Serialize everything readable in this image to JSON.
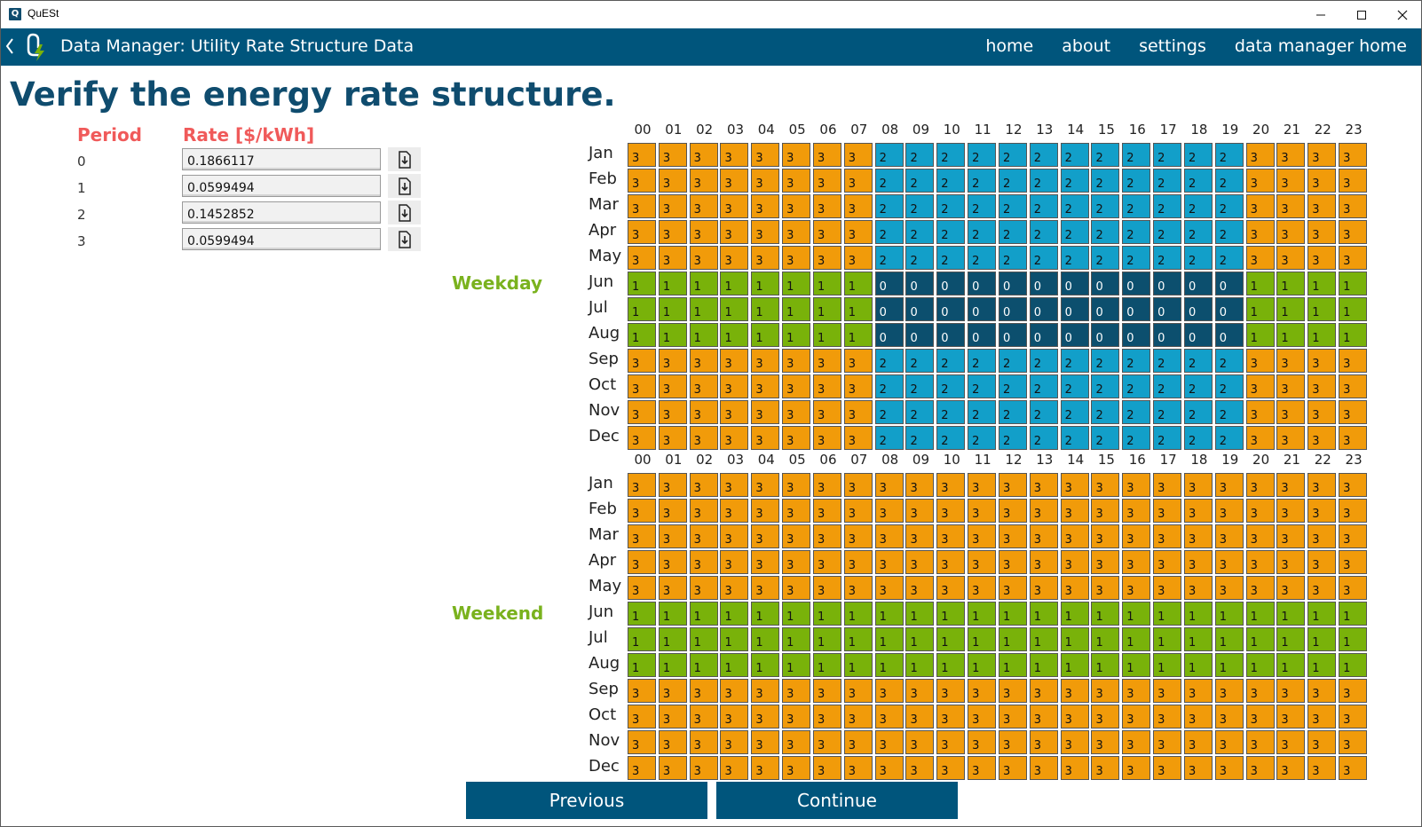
{
  "window": {
    "title": "QuESt",
    "icon_letter": "Q"
  },
  "header": {
    "title": "Data Manager: Utility Rate Structure Data",
    "nav": [
      "home",
      "about",
      "settings",
      "data manager home"
    ]
  },
  "page": {
    "title": "Verify the energy rate structure."
  },
  "rates": {
    "period_header": "Period",
    "rate_header": "Rate [$/kWh]",
    "rows": [
      {
        "period": "0",
        "value": "0.1866117"
      },
      {
        "period": "1",
        "value": "0.0599494"
      },
      {
        "period": "2",
        "value": "0.1452852"
      },
      {
        "period": "3",
        "value": "0.0599494"
      }
    ]
  },
  "hours": [
    "00",
    "01",
    "02",
    "03",
    "04",
    "05",
    "06",
    "07",
    "08",
    "09",
    "10",
    "11",
    "12",
    "13",
    "14",
    "15",
    "16",
    "17",
    "18",
    "19",
    "20",
    "21",
    "22",
    "23"
  ],
  "months": [
    "Jan",
    "Feb",
    "Mar",
    "Apr",
    "May",
    "Jun",
    "Jul",
    "Aug",
    "Sep",
    "Oct",
    "Nov",
    "Dec"
  ],
  "weekday": {
    "label": "Weekday",
    "schedule": [
      [
        3,
        3,
        3,
        3,
        3,
        3,
        3,
        3,
        2,
        2,
        2,
        2,
        2,
        2,
        2,
        2,
        2,
        2,
        2,
        2,
        3,
        3,
        3,
        3
      ],
      [
        3,
        3,
        3,
        3,
        3,
        3,
        3,
        3,
        2,
        2,
        2,
        2,
        2,
        2,
        2,
        2,
        2,
        2,
        2,
        2,
        3,
        3,
        3,
        3
      ],
      [
        3,
        3,
        3,
        3,
        3,
        3,
        3,
        3,
        2,
        2,
        2,
        2,
        2,
        2,
        2,
        2,
        2,
        2,
        2,
        2,
        3,
        3,
        3,
        3
      ],
      [
        3,
        3,
        3,
        3,
        3,
        3,
        3,
        3,
        2,
        2,
        2,
        2,
        2,
        2,
        2,
        2,
        2,
        2,
        2,
        2,
        3,
        3,
        3,
        3
      ],
      [
        3,
        3,
        3,
        3,
        3,
        3,
        3,
        3,
        2,
        2,
        2,
        2,
        2,
        2,
        2,
        2,
        2,
        2,
        2,
        2,
        3,
        3,
        3,
        3
      ],
      [
        1,
        1,
        1,
        1,
        1,
        1,
        1,
        1,
        0,
        0,
        0,
        0,
        0,
        0,
        0,
        0,
        0,
        0,
        0,
        0,
        1,
        1,
        1,
        1
      ],
      [
        1,
        1,
        1,
        1,
        1,
        1,
        1,
        1,
        0,
        0,
        0,
        0,
        0,
        0,
        0,
        0,
        0,
        0,
        0,
        0,
        1,
        1,
        1,
        1
      ],
      [
        1,
        1,
        1,
        1,
        1,
        1,
        1,
        1,
        0,
        0,
        0,
        0,
        0,
        0,
        0,
        0,
        0,
        0,
        0,
        0,
        1,
        1,
        1,
        1
      ],
      [
        3,
        3,
        3,
        3,
        3,
        3,
        3,
        3,
        2,
        2,
        2,
        2,
        2,
        2,
        2,
        2,
        2,
        2,
        2,
        2,
        3,
        3,
        3,
        3
      ],
      [
        3,
        3,
        3,
        3,
        3,
        3,
        3,
        3,
        2,
        2,
        2,
        2,
        2,
        2,
        2,
        2,
        2,
        2,
        2,
        2,
        3,
        3,
        3,
        3
      ],
      [
        3,
        3,
        3,
        3,
        3,
        3,
        3,
        3,
        2,
        2,
        2,
        2,
        2,
        2,
        2,
        2,
        2,
        2,
        2,
        2,
        3,
        3,
        3,
        3
      ],
      [
        3,
        3,
        3,
        3,
        3,
        3,
        3,
        3,
        2,
        2,
        2,
        2,
        2,
        2,
        2,
        2,
        2,
        2,
        2,
        2,
        3,
        3,
        3,
        3
      ]
    ]
  },
  "weekend": {
    "label": "Weekend",
    "schedule": [
      [
        3,
        3,
        3,
        3,
        3,
        3,
        3,
        3,
        3,
        3,
        3,
        3,
        3,
        3,
        3,
        3,
        3,
        3,
        3,
        3,
        3,
        3,
        3,
        3
      ],
      [
        3,
        3,
        3,
        3,
        3,
        3,
        3,
        3,
        3,
        3,
        3,
        3,
        3,
        3,
        3,
        3,
        3,
        3,
        3,
        3,
        3,
        3,
        3,
        3
      ],
      [
        3,
        3,
        3,
        3,
        3,
        3,
        3,
        3,
        3,
        3,
        3,
        3,
        3,
        3,
        3,
        3,
        3,
        3,
        3,
        3,
        3,
        3,
        3,
        3
      ],
      [
        3,
        3,
        3,
        3,
        3,
        3,
        3,
        3,
        3,
        3,
        3,
        3,
        3,
        3,
        3,
        3,
        3,
        3,
        3,
        3,
        3,
        3,
        3,
        3
      ],
      [
        3,
        3,
        3,
        3,
        3,
        3,
        3,
        3,
        3,
        3,
        3,
        3,
        3,
        3,
        3,
        3,
        3,
        3,
        3,
        3,
        3,
        3,
        3,
        3
      ],
      [
        1,
        1,
        1,
        1,
        1,
        1,
        1,
        1,
        1,
        1,
        1,
        1,
        1,
        1,
        1,
        1,
        1,
        1,
        1,
        1,
        1,
        1,
        1,
        1
      ],
      [
        1,
        1,
        1,
        1,
        1,
        1,
        1,
        1,
        1,
        1,
        1,
        1,
        1,
        1,
        1,
        1,
        1,
        1,
        1,
        1,
        1,
        1,
        1,
        1
      ],
      [
        1,
        1,
        1,
        1,
        1,
        1,
        1,
        1,
        1,
        1,
        1,
        1,
        1,
        1,
        1,
        1,
        1,
        1,
        1,
        1,
        1,
        1,
        1,
        1
      ],
      [
        3,
        3,
        3,
        3,
        3,
        3,
        3,
        3,
        3,
        3,
        3,
        3,
        3,
        3,
        3,
        3,
        3,
        3,
        3,
        3,
        3,
        3,
        3,
        3
      ],
      [
        3,
        3,
        3,
        3,
        3,
        3,
        3,
        3,
        3,
        3,
        3,
        3,
        3,
        3,
        3,
        3,
        3,
        3,
        3,
        3,
        3,
        3,
        3,
        3
      ],
      [
        3,
        3,
        3,
        3,
        3,
        3,
        3,
        3,
        3,
        3,
        3,
        3,
        3,
        3,
        3,
        3,
        3,
        3,
        3,
        3,
        3,
        3,
        3,
        3
      ],
      [
        3,
        3,
        3,
        3,
        3,
        3,
        3,
        3,
        3,
        3,
        3,
        3,
        3,
        3,
        3,
        3,
        3,
        3,
        3,
        3,
        3,
        3,
        3,
        3
      ]
    ]
  },
  "period_colors": {
    "0": "#0c4f6e",
    "1": "#79b20a",
    "2": "#129fc9",
    "3": "#f19b0a"
  },
  "buttons": {
    "previous": "Previous",
    "continue": "Continue"
  }
}
